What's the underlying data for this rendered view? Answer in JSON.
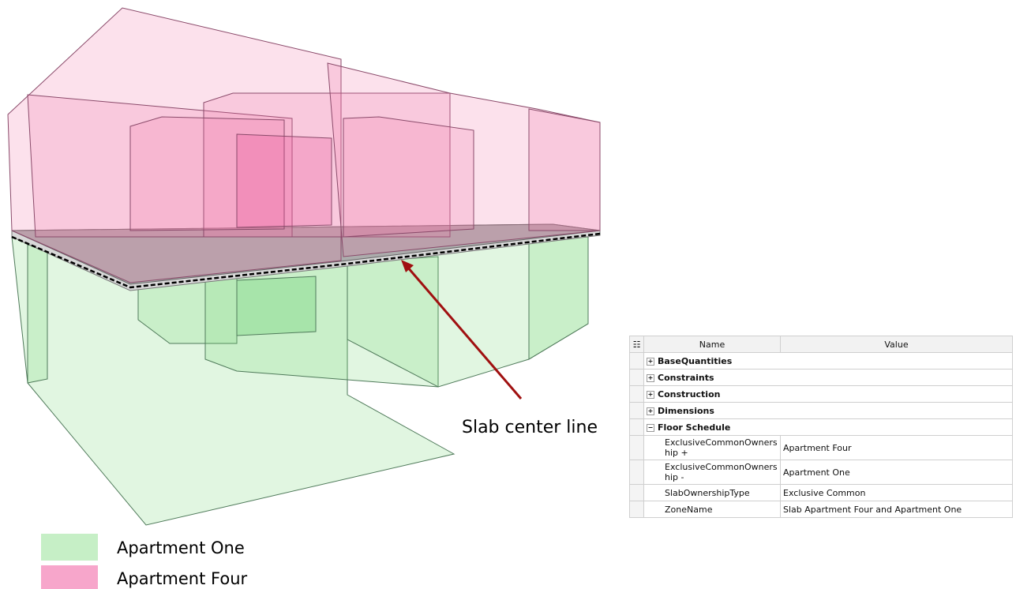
{
  "annotation": "Slab center line",
  "legend": [
    {
      "label": "Apartment One",
      "color": "#c6efc6"
    },
    {
      "label": "Apartment Four",
      "color": "#f7a6cb"
    }
  ],
  "properties": {
    "header": [
      "Name",
      "Value"
    ],
    "groups": [
      "BaseQuantities",
      "Constraints",
      "Construction",
      "Dimensions"
    ],
    "expanded_group": "Floor Schedule",
    "rows": [
      [
        "ExclusiveCommonOwnership +",
        "Apartment Four"
      ],
      [
        "ExclusiveCommonOwnership -",
        "Apartment One"
      ],
      [
        "SlabOwnershipType",
        "Exclusive Common"
      ],
      [
        "ZoneName",
        "Slab Apartment Four and Apartment One"
      ]
    ]
  }
}
